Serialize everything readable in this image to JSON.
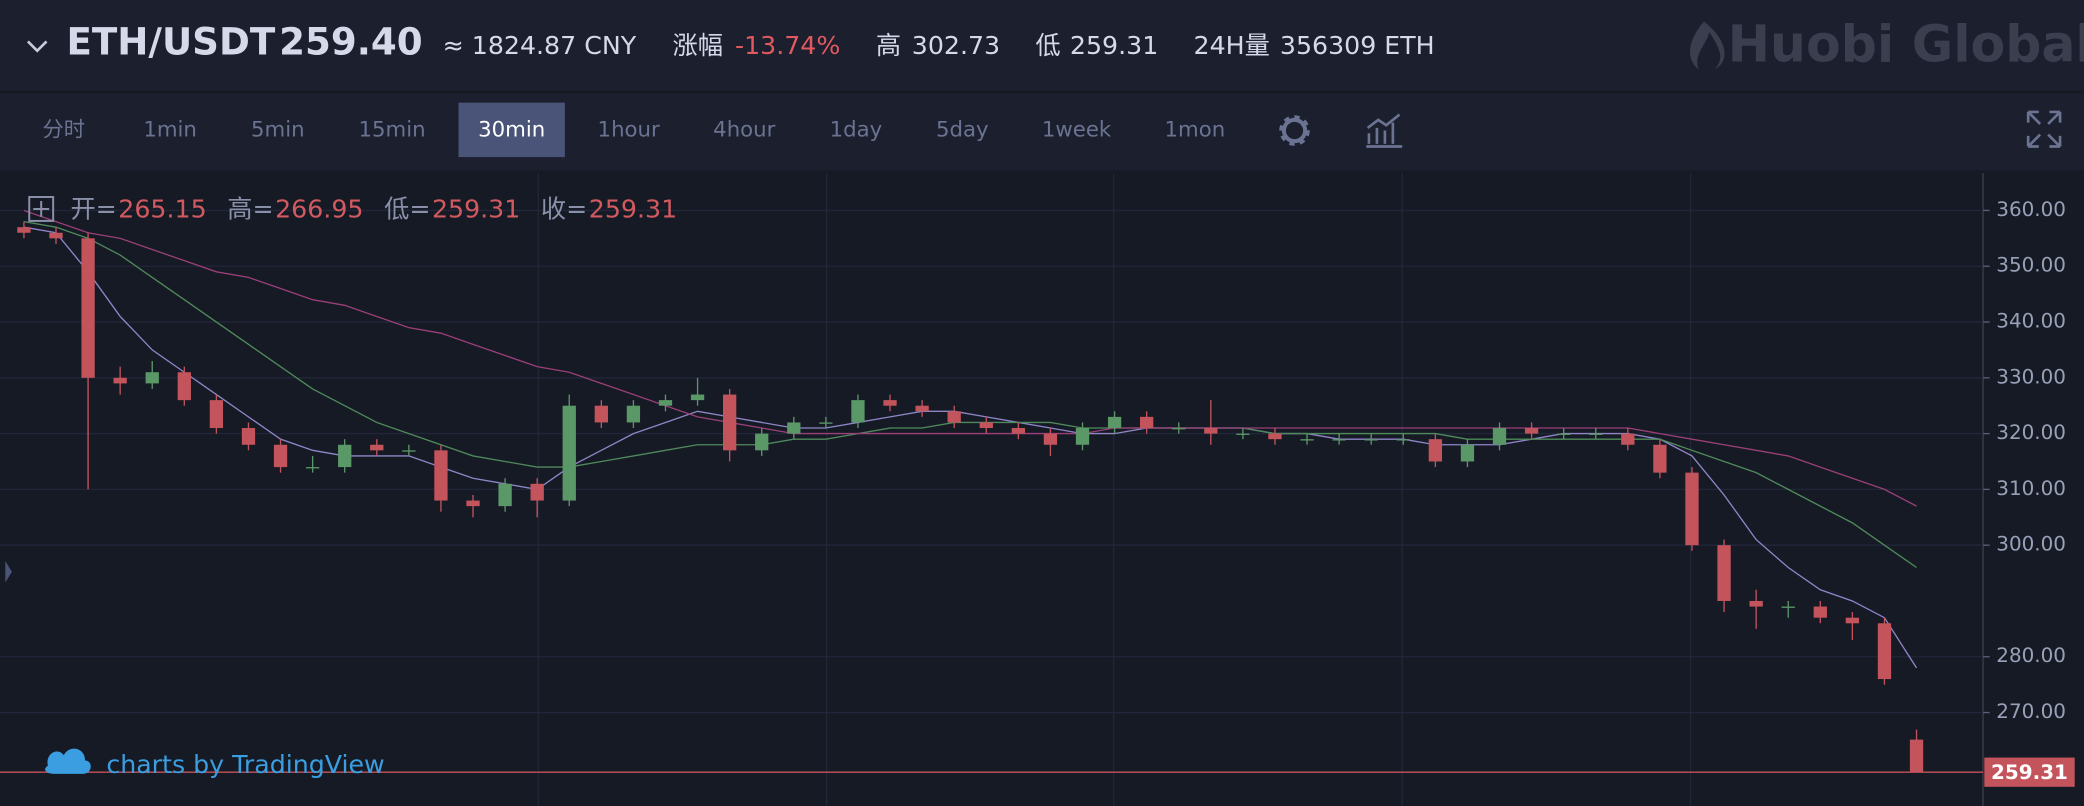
{
  "header": {
    "pair": "ETH/USDT",
    "price": "259.40",
    "cny": "≈ 1824.87 CNY",
    "change_label": "涨幅",
    "change": "-13.74%",
    "high_label": "高",
    "high": "302.73",
    "low_label": "低",
    "low": "259.31",
    "volume_label": "24H量",
    "volume": "356309 ETH",
    "logo": "Huobi Global"
  },
  "toolbar": {
    "intervals": [
      "分时",
      "1min",
      "5min",
      "15min",
      "30min",
      "1hour",
      "4hour",
      "1day",
      "5day",
      "1week",
      "1mon"
    ],
    "active": 4
  },
  "chart_data": {
    "type": "candlestick",
    "ohlc_legend": [
      {
        "label": "开=",
        "value": 265.15
      },
      {
        "label": "高=",
        "value": 266.95
      },
      {
        "label": "低=",
        "value": 259.31
      },
      {
        "label": "收=",
        "value": 259.31
      }
    ],
    "watermark": "charts by TradingView",
    "ylim": [
      253.3,
      366.7
    ],
    "yticks": [
      {
        "value": 360,
        "label": "360.00"
      },
      {
        "value": 350,
        "label": "350.00"
      },
      {
        "value": 340,
        "label": "340.00"
      },
      {
        "value": 330,
        "label": "330.00"
      },
      {
        "value": 320,
        "label": "320.00"
      },
      {
        "value": 310,
        "label": "310.00"
      },
      {
        "value": 300,
        "label": "300.00"
      },
      {
        "value": 280,
        "label": "280.00"
      },
      {
        "value": 270,
        "label": "270.00"
      }
    ],
    "last_price": {
      "value": 259.31,
      "label": "259.31"
    },
    "grid": true,
    "up_color": "#5b9868",
    "down_color": "#c4545c",
    "open": [
      357,
      356,
      355,
      330,
      329,
      331,
      326,
      321,
      318,
      314,
      314,
      318,
      317,
      317,
      308,
      307,
      311,
      308,
      325,
      322,
      325,
      326,
      327,
      317,
      320,
      322,
      322,
      326,
      325,
      324,
      322,
      321,
      320,
      318,
      321,
      323,
      321,
      321,
      320,
      320,
      319,
      319,
      319,
      319,
      319,
      315,
      318,
      321,
      320,
      320,
      320,
      318,
      313,
      300,
      290,
      289,
      289,
      287,
      286,
      265.15
    ],
    "high": [
      358,
      357,
      356,
      332,
      333,
      332,
      327,
      322,
      319,
      316,
      319,
      319,
      318,
      318,
      309,
      312,
      312,
      327,
      326,
      326,
      327,
      330,
      328,
      321,
      323,
      323,
      327,
      327,
      326,
      325,
      323,
      322,
      321,
      322,
      324,
      324,
      322,
      326,
      321,
      321,
      320,
      320,
      320,
      320,
      320,
      319,
      322,
      322,
      321,
      321,
      321,
      319,
      314,
      301,
      292,
      290,
      290,
      288,
      287,
      266.95
    ],
    "low": [
      355,
      354,
      310,
      327,
      328,
      325,
      320,
      317,
      313,
      313,
      313,
      316,
      316,
      306,
      305,
      306,
      305,
      307,
      321,
      321,
      324,
      325,
      315,
      316,
      319,
      321,
      321,
      324,
      323,
      321,
      320,
      319,
      316,
      317,
      320,
      320,
      320,
      318,
      319,
      318,
      318,
      318,
      318,
      318,
      314,
      314,
      317,
      319,
      319,
      319,
      317,
      312,
      299,
      288,
      285,
      287,
      286,
      283,
      275,
      259.31
    ],
    "close": [
      356,
      355,
      330,
      329,
      331,
      326,
      321,
      318,
      314,
      314,
      318,
      317,
      317,
      308,
      307,
      311,
      308,
      325,
      322,
      325,
      326,
      327,
      317,
      320,
      322,
      322,
      326,
      325,
      324,
      322,
      321,
      320,
      318,
      321,
      323,
      321,
      321,
      320,
      320,
      319,
      319,
      319,
      319,
      319,
      315,
      318,
      321,
      320,
      320,
      320,
      318,
      313,
      300,
      290,
      289,
      289,
      287,
      286,
      276,
      259.31
    ],
    "series": [
      {
        "color": "#8f86c8",
        "values": [
          357,
          356,
          349,
          341,
          335,
          331,
          327,
          323,
          319,
          317,
          316,
          316,
          316,
          314,
          312,
          311,
          310,
          314,
          317,
          320,
          322,
          324,
          323,
          322,
          321,
          321,
          322,
          323,
          324,
          324,
          323,
          322,
          321,
          320,
          320,
          321,
          321,
          321,
          321,
          320,
          320,
          319,
          319,
          319,
          318,
          318,
          318,
          319,
          320,
          320,
          320,
          319,
          316,
          309,
          301,
          296,
          292,
          290,
          287,
          278
        ]
      },
      {
        "color": "#4f8a5a",
        "values": [
          358,
          357,
          355,
          352,
          348,
          344,
          340,
          336,
          332,
          328,
          325,
          322,
          320,
          318,
          316,
          315,
          314,
          314,
          315,
          316,
          317,
          318,
          318,
          318,
          319,
          319,
          320,
          321,
          321,
          322,
          322,
          322,
          322,
          321,
          321,
          321,
          321,
          321,
          321,
          320,
          320,
          320,
          320,
          320,
          320,
          319,
          319,
          319,
          319,
          319,
          319,
          319,
          317,
          315,
          313,
          310,
          307,
          304,
          300,
          296
        ]
      },
      {
        "color": "#9a3f78",
        "values": [
          360,
          358,
          356,
          355,
          353,
          351,
          349,
          348,
          346,
          344,
          343,
          341,
          339,
          338,
          336,
          334,
          332,
          331,
          329,
          327,
          325,
          323,
          322,
          321,
          320,
          320,
          320,
          320,
          320,
          320,
          320,
          320,
          320,
          320,
          321,
          321,
          321,
          321,
          321,
          321,
          321,
          321,
          321,
          321,
          321,
          321,
          321,
          321,
          321,
          321,
          321,
          320,
          319,
          318,
          317,
          316,
          314,
          312,
          310,
          307
        ]
      }
    ]
  }
}
